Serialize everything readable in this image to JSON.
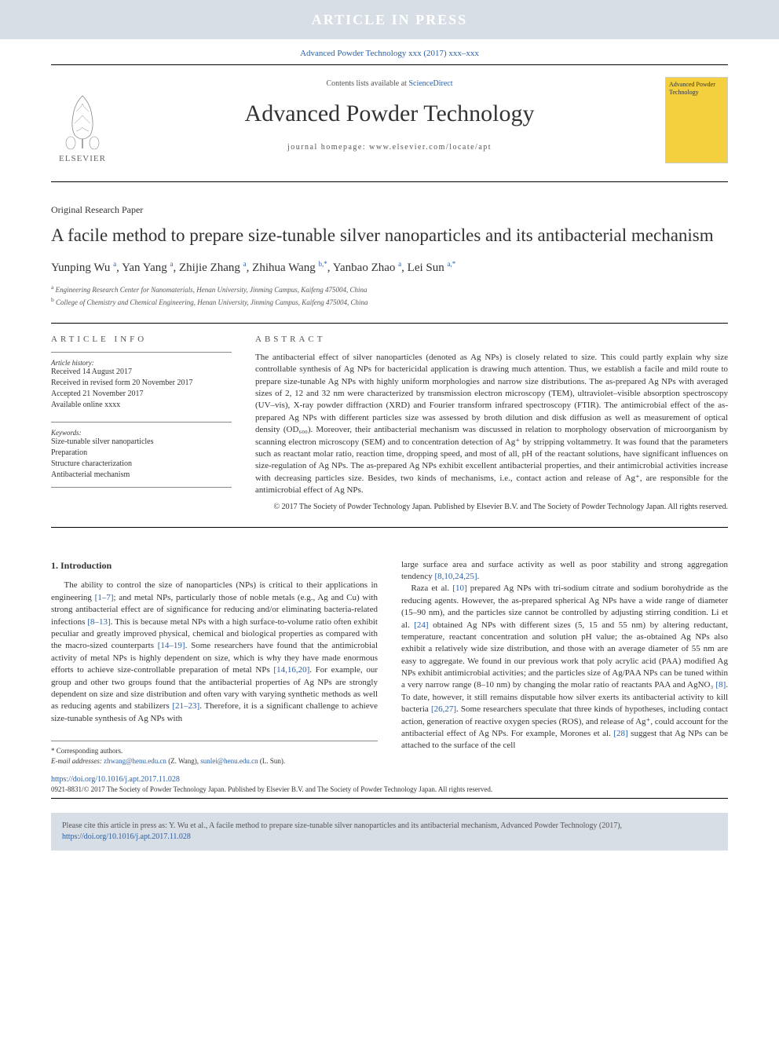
{
  "banner": {
    "text": "ARTICLE IN PRESS"
  },
  "citation_top": "Advanced Powder Technology xxx (2017) xxx–xxx",
  "journal_header": {
    "contents_prefix": "Contents lists available at ",
    "contents_link": "ScienceDirect",
    "journal_name": "Advanced Powder Technology",
    "homepage": "journal homepage: www.elsevier.com/locate/apt",
    "elsevier_name": "ELSEVIER",
    "cover_title": "Advanced Powder Technology"
  },
  "article_type": "Original Research Paper",
  "title": "A facile method to prepare size-tunable silver nanoparticles and its antibacterial mechanism",
  "authors_html": "Yunping Wu <sup>a</sup>, Yan Yang <sup>a</sup>, Zhijie Zhang <sup>a</sup>, Zhihua Wang <sup>b,*</sup>, Yanbao Zhao <sup>a</sup>, Lei Sun <sup>a,*</sup>",
  "affiliations": [
    {
      "sup": "a",
      "text": "Engineering Research Center for Nanomaterials, Henan University, Jinming Campus, Kaifeng 475004, China"
    },
    {
      "sup": "b",
      "text": "College of Chemistry and Chemical Engineering, Henan University, Jinming Campus, Kaifeng 475004, China"
    }
  ],
  "info": {
    "label": "ARTICLE INFO",
    "history_label": "Article history:",
    "history": [
      "Received 14 August 2017",
      "Received in revised form 20 November 2017",
      "Accepted 21 November 2017",
      "Available online xxxx"
    ],
    "keywords_label": "Keywords:",
    "keywords": [
      "Size-tunable silver nanoparticles",
      "Preparation",
      "Structure characterization",
      "Antibacterial mechanism"
    ]
  },
  "abstract": {
    "label": "ABSTRACT",
    "text": "The antibacterial effect of silver nanoparticles (denoted as Ag NPs) is closely related to size. This could partly explain why size controllable synthesis of Ag NPs for bactericidal application is drawing much attention. Thus, we establish a facile and mild route to prepare size-tunable Ag NPs with highly uniform morphologies and narrow size distributions. The as-prepared Ag NPs with averaged sizes of 2, 12 and 32 nm were characterized by transmission electron microscopy (TEM), ultraviolet–visible absorption spectroscopy (UV–vis), X-ray powder diffraction (XRD) and Fourier transform infrared spectroscopy (FTIR). The antimicrobial effect of the as-prepared Ag NPs with different particles size was assessed by broth dilution and disk diffusion as well as measurement of optical density (OD₆₀₀). Moreover, their antibacterial mechanism was discussed in relation to morphology observation of microorganism by scanning electron microscopy (SEM) and to concentration detection of Ag⁺ by stripping voltammetry. It was found that the parameters such as reactant molar ratio, reaction time, dropping speed, and most of all, pH of the reactant solutions, have significant influences on size-regulation of Ag NPs. The as-prepared Ag NPs exhibit excellent antibacterial properties, and their antimicrobial activities increase with decreasing particles size. Besides, two kinds of mechanisms, i.e., contact action and release of Ag⁺, are responsible for the antimicrobial effect of Ag NPs.",
    "copyright": "© 2017 The Society of Powder Technology Japan. Published by Elsevier B.V. and The Society of Powder Technology Japan. All rights reserved."
  },
  "body": {
    "heading": "1. Introduction",
    "col1_html": "The ability to control the size of nanoparticles (NPs) is critical to their applications in engineering <a href='#'>[1–7]</a>; and metal NPs, particularly those of noble metals (e.g., Ag and Cu) with strong antibacterial effect are of significance for reducing and/or eliminating bacteria-related infections <a href='#'>[8–13]</a>. This is because metal NPs with a high surface-to-volume ratio often exhibit peculiar and greatly improved physical, chemical and biological properties as compared with the macro-sized counterparts <a href='#'>[14–19]</a>. Some researchers have found that the antimicrobial activity of metal NPs is highly dependent on size, which is why they have made enormous efforts to achieve size-controllable preparation of metal NPs <a href='#'>[14,16,20]</a>. For example, our group and other two groups found that the antibacterial properties of Ag NPs are strongly dependent on size and size distribution and often vary with varying synthetic methods as well as reducing agents and stabilizers <a href='#'>[21–23]</a>. Therefore, it is a significant challenge to achieve size-tunable synthesis of Ag NPs with",
    "col2_html": "large surface area and surface activity as well as poor stability and strong aggregation tendency <a href='#'>[8,10,24,25]</a>.<br>&nbsp;&nbsp;&nbsp;Raza et al. <a href='#'>[10]</a> prepared Ag NPs with tri-sodium citrate and sodium borohydride as the reducing agents. However, the as-prepared spherical Ag NPs have a wide range of diameter (15–90 nm), and the particles size cannot be controlled by adjusting stirring condition. Li et al. <a href='#'>[24]</a> obtained Ag NPs with different sizes (5, 15 and 55 nm) by altering reductant, temperature, reactant concentration and solution pH value; the as-obtained Ag NPs also exhibit a relatively wide size distribution, and those with an average diameter of 55 nm are easy to aggregate. We found in our previous work that poly acrylic acid (PAA) modified Ag NPs exhibit antimicrobial activities; and the particles size of Ag/PAA NPs can be tuned within a very narrow range (8–10 nm) by changing the molar ratio of reactants PAA and AgNO₃ <a href='#'>[8]</a>. To date, however, it still remains disputable how silver exerts its antibacterial activity to kill bacteria <a href='#'>[26,27]</a>. Some researchers speculate that three kinds of hypotheses, including contact action, generation of reactive oxygen species (ROS), and release of Ag⁺, could account for the antibacterial effect of Ag NPs. For example, Morones et al. <a href='#'>[28]</a> suggest that Ag NPs can be attached to the surface of the cell"
  },
  "corresponding": {
    "star": "* Corresponding authors.",
    "email_label": "E-mail addresses: ",
    "email1": "zhwang@henu.edu.cn",
    "name1": " (Z. Wang), ",
    "email2": "sunlei@henu.edu.cn",
    "name2": " (L. Sun)."
  },
  "doi": {
    "url": "https://doi.org/10.1016/j.apt.2017.11.028"
  },
  "issn": "0921-8831/© 2017 The Society of Powder Technology Japan. Published by Elsevier B.V. and The Society of Powder Technology Japan. All rights reserved.",
  "cite_box": {
    "text": "Please cite this article in press as: Y. Wu et al., A facile method to prepare size-tunable silver nanoparticles and its antibacterial mechanism, Advanced Powder Technology (2017), ",
    "link": "https://doi.org/10.1016/j.apt.2017.11.028"
  },
  "colors": {
    "banner_bg": "#d8dee5",
    "link_color": "#2a5fa5",
    "cover_bg": "#f4d03f"
  }
}
